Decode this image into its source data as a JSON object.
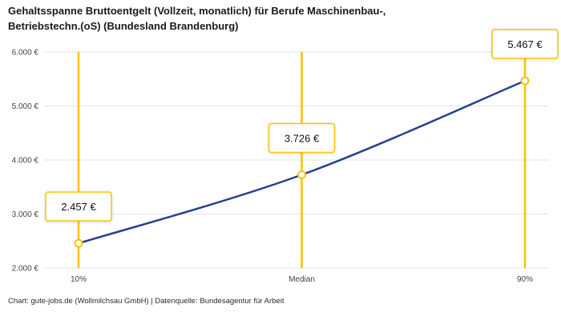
{
  "title": "Gehaltsspanne Bruttoentgelt (Vollzeit, monatlich) für Berufe Maschinenbau-,\nBetriebstechn.(oS) (Bundesland Brandenburg)",
  "footer": "Chart: gute-jobs.de (Wollmilchsau GmbH) | Datenquelle: Bundesagentur für Arbeit",
  "chart_data": {
    "type": "line",
    "title": "Gehaltsspanne Bruttoentgelt (Vollzeit, monatlich) für Berufe Maschinenbau-, Betriebstechn.(oS) (Bundesland Brandenburg)",
    "categories": [
      "10%",
      "Median",
      "90%"
    ],
    "values": [
      2457,
      3726,
      5467
    ],
    "value_labels": [
      "2.457 €",
      "3.726 €",
      "5.467 €"
    ],
    "ylim": [
      2000,
      6000
    ],
    "yticks": [
      2000,
      3000,
      4000,
      5000,
      6000
    ],
    "ytick_labels": [
      "2.000 €",
      "3.000 €",
      "4.000 €",
      "5.000 €",
      "6.000 €"
    ],
    "xlabel": "",
    "ylabel": "",
    "grid": true,
    "legend": false,
    "colors": {
      "line": "#27418F",
      "highlight": "#FCC200",
      "marker": "#FCC200",
      "grid": "#e3e3e3",
      "tick_text": "#444444",
      "value_text": "#111111",
      "box_fill": "#ffffff"
    }
  }
}
